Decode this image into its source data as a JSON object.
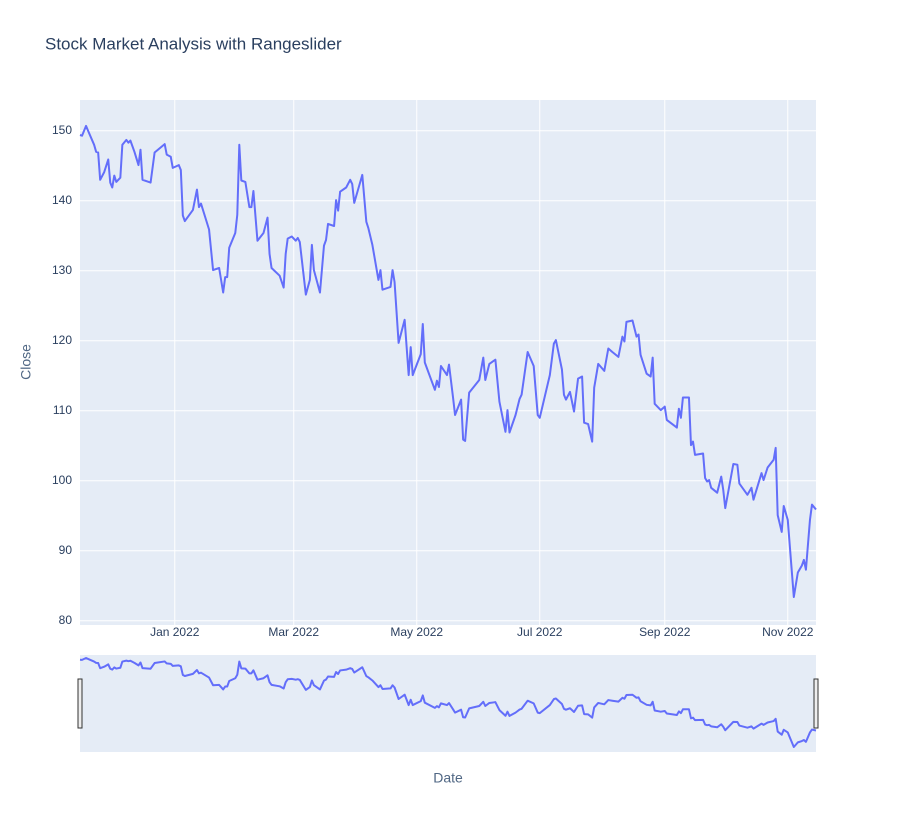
{
  "chart_data": {
    "type": "line",
    "title": "Stock Market Analysis with Rangeslider",
    "xlabel": "Date",
    "ylabel": "Close",
    "color": "#636efa",
    "grid": true,
    "rangeslider": true,
    "xlim": [
      "2021-11-15",
      "2022-11-15"
    ],
    "xticks": [
      {
        "value": "2022-01-01",
        "label": "Jan 2022"
      },
      {
        "value": "2022-03-01",
        "label": "Mar 2022"
      },
      {
        "value": "2022-05-01",
        "label": "May 2022"
      },
      {
        "value": "2022-07-01",
        "label": "Jul 2022"
      },
      {
        "value": "2022-09-01",
        "label": "Sep 2022"
      },
      {
        "value": "2022-11-01",
        "label": "Nov 2022"
      }
    ],
    "ylim": [
      79.4,
      154.4
    ],
    "yticks": [
      80,
      90,
      100,
      110,
      120,
      130,
      140,
      150
    ],
    "x": [
      "2021-11-15",
      "2021-11-16",
      "2021-11-18",
      "2021-11-19",
      "2021-11-22",
      "2021-11-23",
      "2021-11-24",
      "2021-11-25",
      "2021-11-27",
      "2021-11-29",
      "2021-11-30",
      "2021-12-01",
      "2021-12-02",
      "2021-12-03",
      "2021-12-05",
      "2021-12-06",
      "2021-12-08",
      "2021-12-09",
      "2021-12-10",
      "2021-12-12",
      "2021-12-14",
      "2021-12-15",
      "2021-12-16",
      "2021-12-20",
      "2021-12-22",
      "2021-12-27",
      "2021-12-28",
      "2021-12-30",
      "2021-12-31",
      "2022-01-03",
      "2022-01-04",
      "2022-01-05",
      "2022-01-06",
      "2022-01-10",
      "2022-01-12",
      "2022-01-13",
      "2022-01-14",
      "2022-01-18",
      "2022-01-20",
      "2022-01-23",
      "2022-01-25",
      "2022-01-26",
      "2022-01-27",
      "2022-01-28",
      "2022-01-31",
      "2022-02-01",
      "2022-02-02",
      "2022-02-03",
      "2022-02-05",
      "2022-02-07",
      "2022-02-08",
      "2022-02-09",
      "2022-02-11",
      "2022-02-14",
      "2022-02-16",
      "2022-02-17",
      "2022-02-18",
      "2022-02-22",
      "2022-02-24",
      "2022-02-25",
      "2022-02-26",
      "2022-02-28",
      "2022-03-02",
      "2022-03-03",
      "2022-03-04",
      "2022-03-07",
      "2022-03-09",
      "2022-03-10",
      "2022-03-11",
      "2022-03-14",
      "2022-03-16",
      "2022-03-17",
      "2022-03-18",
      "2022-03-21",
      "2022-03-22",
      "2022-03-23",
      "2022-03-24",
      "2022-03-27",
      "2022-03-29",
      "2022-03-30",
      "2022-03-31",
      "2022-04-04",
      "2022-04-06",
      "2022-04-07",
      "2022-04-09",
      "2022-04-12",
      "2022-04-13",
      "2022-04-14",
      "2022-04-18",
      "2022-04-19",
      "2022-04-20",
      "2022-04-22",
      "2022-04-25",
      "2022-04-27",
      "2022-04-28",
      "2022-04-29",
      "2022-05-03",
      "2022-05-04",
      "2022-05-05",
      "2022-05-10",
      "2022-05-11",
      "2022-05-12",
      "2022-05-13",
      "2022-05-16",
      "2022-05-17",
      "2022-05-19",
      "2022-05-20",
      "2022-05-23",
      "2022-05-24",
      "2022-05-25",
      "2022-05-27",
      "2022-06-01",
      "2022-06-03",
      "2022-06-04",
      "2022-06-06",
      "2022-06-08",
      "2022-06-09",
      "2022-06-11",
      "2022-06-14",
      "2022-06-15",
      "2022-06-16",
      "2022-06-19",
      "2022-06-21",
      "2022-06-22",
      "2022-06-25",
      "2022-06-28",
      "2022-06-30",
      "2022-07-01",
      "2022-07-06",
      "2022-07-08",
      "2022-07-09",
      "2022-07-12",
      "2022-07-13",
      "2022-07-14",
      "2022-07-16",
      "2022-07-18",
      "2022-07-20",
      "2022-07-22",
      "2022-07-23",
      "2022-07-25",
      "2022-07-27",
      "2022-07-28",
      "2022-07-30",
      "2022-08-02",
      "2022-08-04",
      "2022-08-06",
      "2022-08-09",
      "2022-08-11",
      "2022-08-12",
      "2022-08-13",
      "2022-08-16",
      "2022-08-18",
      "2022-08-19",
      "2022-08-20",
      "2022-08-23",
      "2022-08-25",
      "2022-08-26",
      "2022-08-27",
      "2022-08-30",
      "2022-09-01",
      "2022-09-02",
      "2022-09-07",
      "2022-09-08",
      "2022-09-09",
      "2022-09-10",
      "2022-09-13",
      "2022-09-14",
      "2022-09-15",
      "2022-09-16",
      "2022-09-20",
      "2022-09-21",
      "2022-09-22",
      "2022-09-23",
      "2022-09-24",
      "2022-09-27",
      "2022-09-29",
      "2022-09-30",
      "2022-10-01",
      "2022-10-05",
      "2022-10-07",
      "2022-10-08",
      "2022-10-12",
      "2022-10-14",
      "2022-10-15",
      "2022-10-19",
      "2022-10-20",
      "2022-10-22",
      "2022-10-25",
      "2022-10-26",
      "2022-10-27",
      "2022-10-29",
      "2022-10-30",
      "2022-11-01",
      "2022-11-04",
      "2022-11-06",
      "2022-11-08",
      "2022-11-09",
      "2022-11-10",
      "2022-11-12",
      "2022-11-13",
      "2022-11-15"
    ],
    "values": [
      149.4,
      149.3,
      150.7,
      150,
      148,
      147,
      146.9,
      143,
      144.1,
      145.9,
      142.6,
      141.9,
      143.6,
      142.7,
      143.3,
      148,
      148.7,
      148.3,
      148.6,
      147,
      145.1,
      147.3,
      143,
      142.6,
      146.9,
      148.1,
      146.6,
      146.3,
      144.7,
      145.1,
      144.4,
      137.9,
      137.1,
      138.7,
      141.6,
      139.1,
      139.6,
      135.9,
      130.1,
      130.4,
      126.9,
      129.1,
      129.1,
      133.3,
      135.4,
      138,
      148,
      142.9,
      142.7,
      139.1,
      139.1,
      141.4,
      134.3,
      135.4,
      137.6,
      132.4,
      130.4,
      129.3,
      127.6,
      132.4,
      134.6,
      134.9,
      134.3,
      134.7,
      134.1,
      126.6,
      128.7,
      133.7,
      130.1,
      126.9,
      133.6,
      134.4,
      136.7,
      136.4,
      140.1,
      138.6,
      141.3,
      141.9,
      143,
      142.4,
      139.7,
      143.7,
      137,
      136.1,
      133.7,
      128.7,
      130.1,
      127.3,
      127.7,
      130.1,
      128.4,
      119.7,
      123,
      115.1,
      119.1,
      115.1,
      118.1,
      122.4,
      116.9,
      113,
      114.3,
      113.4,
      116.4,
      115.1,
      116.6,
      111.9,
      109.4,
      111.6,
      105.9,
      105.7,
      112.6,
      114.4,
      117.6,
      114.4,
      116.7,
      117.1,
      117.3,
      111.3,
      107,
      110.1,
      106.9,
      109.4,
      111.7,
      112.3,
      118.4,
      116.4,
      109.4,
      109,
      115.1,
      119.6,
      120.1,
      115.9,
      112.3,
      111.6,
      112.7,
      109.9,
      114.6,
      114.9,
      108.3,
      108.1,
      105.6,
      113.3,
      116.7,
      115.7,
      118.9,
      118.4,
      117.7,
      120.6,
      119.9,
      122.7,
      122.9,
      120.6,
      120.9,
      118,
      115.3,
      114.9,
      117.6,
      111,
      110.1,
      110.6,
      108.7,
      107.6,
      110.3,
      109,
      111.9,
      111.9,
      105.1,
      105.6,
      103.7,
      103.9,
      100.4,
      99.9,
      100.1,
      99,
      98.3,
      100.6,
      98.7,
      96.1,
      102.4,
      102.3,
      99.6,
      98,
      99,
      97.3,
      101.1,
      100.1,
      101.9,
      103,
      104.7,
      95.1,
      92.7,
      96.4,
      94.4,
      83.4,
      86.9,
      87.9,
      88.7,
      87.3,
      94.4,
      96.6,
      95.9
    ]
  }
}
